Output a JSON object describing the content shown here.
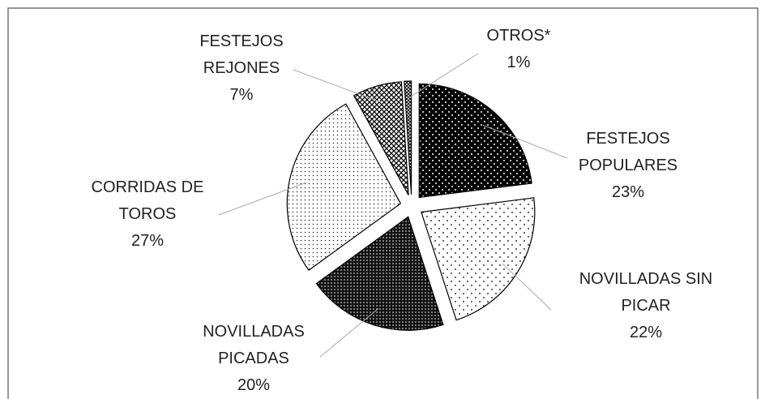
{
  "chart_data": {
    "type": "pie",
    "categories": [
      "FESTEJOS POPULARES",
      "NOVILLADAS SIN PICAR",
      "NOVILLADAS PICADAS",
      "CORRIDAS DE TOROS",
      "FESTEJOS REJONES",
      "OTROS*"
    ],
    "values": [
      23,
      22,
      20,
      27,
      7,
      1
    ],
    "value_labels": [
      "23%",
      "22%",
      "20%",
      "27%",
      "7%",
      "1%"
    ]
  }
}
